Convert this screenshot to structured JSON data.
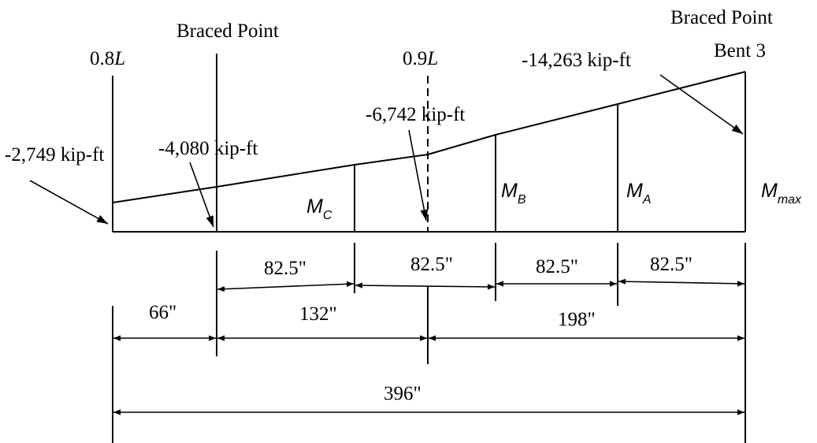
{
  "labels": {
    "pos_08": "0.8",
    "pos_09": "0.9",
    "L": "L",
    "braced_point_1": "Braced Point",
    "braced_point_2": "Braced Point",
    "bent3": "Bent 3",
    "m_2749": "-2,749 kip-ft",
    "m_4080": "-4,080  kip-ft",
    "m_6742": "-6,742  kip-ft",
    "m_14263": "-14,263 kip-ft",
    "M": "M",
    "sub_C": "C",
    "sub_B": "B",
    "sub_A": "A",
    "sub_max": "max"
  },
  "dimensions": {
    "d_825_1": "82.5\"",
    "d_825_2": "82.5\"",
    "d_825_3": "82.5\"",
    "d_825_4": "82.5\"",
    "d_66": "66\"",
    "d_132": "132\"",
    "d_198": "198\"",
    "d_396": "396\""
  }
}
